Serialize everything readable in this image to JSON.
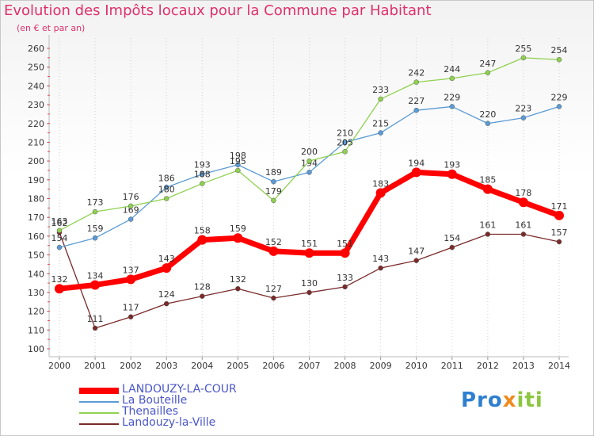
{
  "title": "Evolution des Impôts locaux pour la Commune par Habitant",
  "subtitle": "(en € et par an)",
  "logo": {
    "p1": "Pro",
    "p2": "x",
    "p3": "iti"
  },
  "chart_data": {
    "type": "line",
    "title": "Evolution des Impôts locaux pour la Commune par Habitant",
    "subtitle": "(en € et par an)",
    "categories": [
      "2000",
      "2001",
      "2002",
      "2003",
      "2004",
      "2005",
      "2006",
      "2007",
      "2008",
      "2009",
      "2010",
      "2011",
      "2012",
      "2013",
      "2014"
    ],
    "ylim": [
      100,
      260
    ],
    "yticks": [
      100,
      110,
      120,
      130,
      140,
      150,
      160,
      170,
      180,
      190,
      200,
      210,
      220,
      230,
      240,
      250,
      260
    ],
    "grid": "dotted vertical at years",
    "legend_position": "bottom-left",
    "series": [
      {
        "name": "LANDOUZY-LA-COUR",
        "color": "#ff0000",
        "values": [
          132,
          134,
          137,
          143,
          158,
          159,
          152,
          151,
          151,
          183,
          194,
          193,
          185,
          178,
          171
        ]
      },
      {
        "name": "La Bouteille",
        "color": "#5b9bd5",
        "values": [
          154,
          159,
          169,
          186,
          193,
          198,
          189,
          194,
          210,
          215,
          227,
          229,
          220,
          223,
          229
        ]
      },
      {
        "name": "Thenailles",
        "color": "#8fd14f",
        "values": [
          163,
          173,
          176,
          180,
          188,
          195,
          179,
          200,
          205,
          233,
          242,
          244,
          247,
          255,
          254
        ]
      },
      {
        "name": "Landouzy-la-Ville",
        "color": "#7a2a2a",
        "values": [
          162,
          111,
          117,
          124,
          128,
          132,
          127,
          130,
          133,
          143,
          147,
          154,
          161,
          161,
          157
        ]
      }
    ]
  }
}
